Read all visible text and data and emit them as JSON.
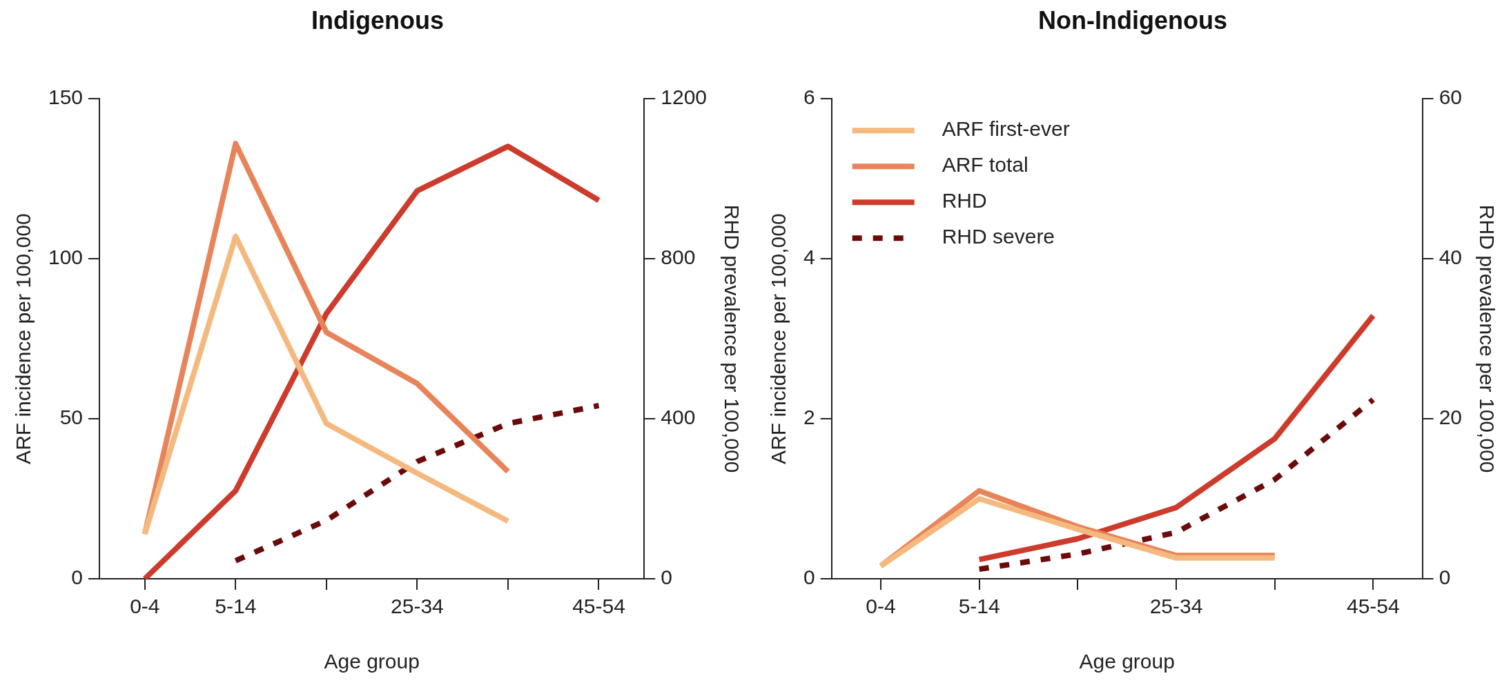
{
  "chart_data": [
    {
      "type": "line",
      "title": "Indigenous",
      "xlabel": "Age group",
      "ylabel": "ARF incidence per 100,000",
      "y2label": "RHD prevalence per 100,000",
      "categories": [
        "0-4",
        "5-14",
        null,
        "25-34",
        null,
        "45-54"
      ],
      "series": [
        {
          "color": "#f4b97f",
          "values": [
            14,
            107,
            48.5,
            33,
            18,
            null
          ]
        },
        {
          "color": "#e8845a",
          "values": [
            14,
            136,
            77,
            61,
            33.5,
            null
          ]
        },
        {
          "color": "#cc3b2b",
          "axis": "y2",
          "values": [
            0,
            220,
            663,
            970,
            1081,
            946
          ]
        },
        {
          "color": "#6b0a0a",
          "axis": "y2",
          "line_style": "dashed",
          "values": [
            null,
            45,
            146,
            293,
            388,
            433
          ]
        }
      ],
      "ylim": [
        0,
        150
      ],
      "yticks": [
        0,
        50,
        100,
        150
      ],
      "y2lim": [
        0,
        1200
      ],
      "y2ticks": [
        0,
        400,
        800,
        1200
      ],
      "grid": false,
      "legend": false,
      "marker": "none",
      "line_style": "solid"
    },
    {
      "type": "line",
      "title": "Non-Indigenous",
      "xlabel": "Age group",
      "ylabel": "ARF incidence per 100,000",
      "y2label": "RHD prevalence per 100,000",
      "categories": [
        "0-4",
        "5-14",
        null,
        "25-34",
        null,
        "45-54"
      ],
      "series": [
        {
          "name": "ARF first-ever",
          "color": "#f4b97f",
          "values": [
            0.16,
            1.0,
            0.62,
            0.26,
            0.26,
            null
          ]
        },
        {
          "name": "ARF total",
          "color": "#e8845a",
          "values": [
            0.16,
            1.1,
            0.65,
            0.29,
            0.29,
            null
          ]
        },
        {
          "name": "RHD",
          "color": "#cc3b2b",
          "axis": "y2",
          "values": [
            null,
            2.4,
            5.0,
            8.9,
            17.5,
            32.9
          ]
        },
        {
          "name": "RHD severe",
          "color": "#6b0a0a",
          "axis": "y2",
          "line_style": "dashed",
          "values": [
            null,
            1.2,
            3.1,
            5.8,
            12.4,
            22.4
          ]
        }
      ],
      "ylim": [
        0,
        6
      ],
      "yticks": [
        0,
        2,
        4,
        6
      ],
      "y2lim": [
        0,
        60
      ],
      "y2ticks": [
        0,
        20,
        40,
        60
      ],
      "grid": false,
      "legend": "top left",
      "marker": "none",
      "line_style": "solid"
    }
  ]
}
